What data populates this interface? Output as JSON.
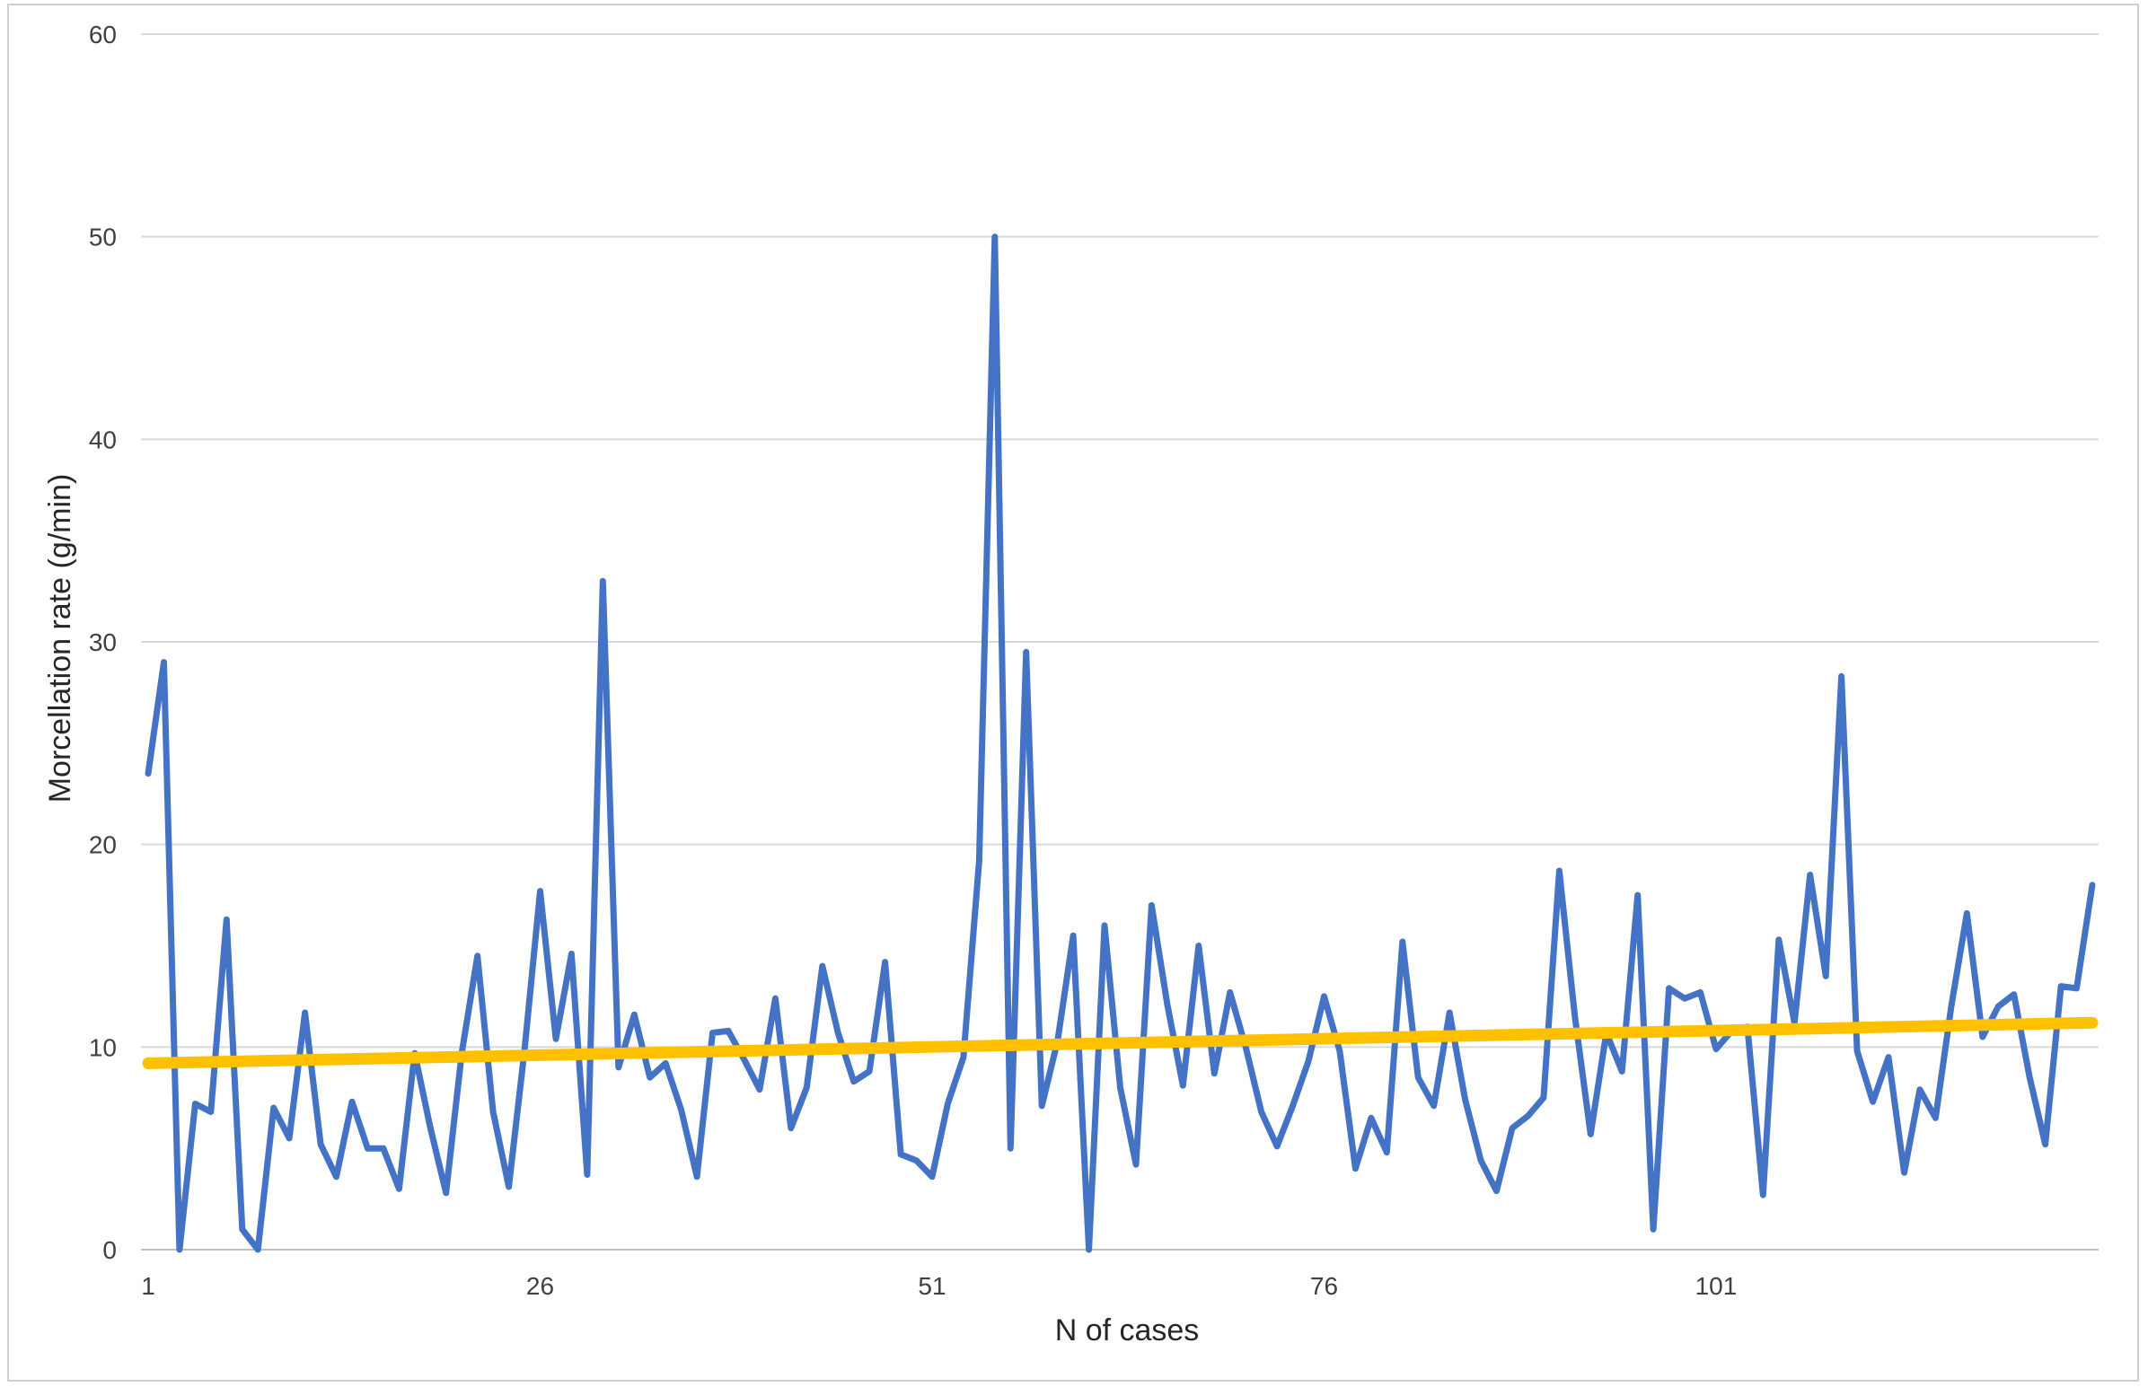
{
  "chart_data": {
    "type": "line",
    "title": "",
    "xlabel": "N of cases",
    "ylabel": "Morcellation rate (g/min)",
    "ylim": [
      0,
      60
    ],
    "y_ticks": [
      "0",
      "10",
      "20",
      "30",
      "40",
      "50",
      "60"
    ],
    "x_ticks": [
      "1",
      "26",
      "51",
      "76",
      "101"
    ],
    "x_tick_values": [
      1,
      26,
      51,
      76,
      101
    ],
    "xlim": [
      1,
      125
    ],
    "grid": true,
    "legend": "none",
    "colors": {
      "series": "#4472C4",
      "trend": "#FFC000",
      "grid": "#d9d9d9",
      "axis": "#bfbfbf"
    },
    "series": [
      {
        "type": "line",
        "x": [
          1,
          2,
          3,
          4,
          5,
          6,
          7,
          8,
          9,
          10,
          11,
          12,
          13,
          14,
          15,
          16,
          17,
          18,
          19,
          20,
          21,
          22,
          23,
          24,
          25,
          26,
          27,
          28,
          29,
          30,
          31,
          32,
          33,
          34,
          35,
          36,
          37,
          38,
          39,
          40,
          41,
          42,
          43,
          44,
          45,
          46,
          47,
          48,
          49,
          50,
          51,
          52,
          53,
          54,
          55,
          56,
          57,
          58,
          59,
          60,
          61,
          62,
          63,
          64,
          65,
          66,
          67,
          68,
          69,
          70,
          71,
          72,
          73,
          74,
          75,
          76,
          77,
          78,
          79,
          80,
          81,
          82,
          83,
          84,
          85,
          86,
          87,
          88,
          89,
          90,
          91,
          92,
          93,
          94,
          95,
          96,
          97,
          98,
          99,
          100,
          101,
          102,
          103,
          104,
          105,
          106,
          107,
          108,
          109,
          110,
          111,
          112,
          113,
          114,
          115,
          116,
          117,
          118,
          119,
          120,
          121,
          122,
          123,
          124,
          125
        ],
        "values": [
          23.5,
          29,
          0,
          7.2,
          6.8,
          16.3,
          1,
          0,
          7,
          5.5,
          11.7,
          5.2,
          3.6,
          7.3,
          5,
          5,
          3,
          9.7,
          6,
          2.8,
          9.7,
          14.5,
          6.8,
          3.1,
          9.8,
          17.7,
          10.4,
          14.6,
          3.7,
          33,
          9,
          11.6,
          8.5,
          9.2,
          6.9,
          3.6,
          10.7,
          10.8,
          9.4,
          7.9,
          12.4,
          6,
          8,
          14,
          10.7,
          8.3,
          8.8,
          14.2,
          4.7,
          4.4,
          3.6,
          7.2,
          9.5,
          19.2,
          50,
          5,
          29.5,
          7.1,
          10.3,
          15.5,
          0,
          16,
          8,
          4.2,
          17,
          12.1,
          8.1,
          15,
          8.7,
          12.7,
          10,
          6.8,
          5.1,
          7.1,
          9.3,
          12.5,
          9.8,
          4,
          6.5,
          4.8,
          15.2,
          8.5,
          7.1,
          11.7,
          7.4,
          4.4,
          2.9,
          6,
          6.6,
          7.5,
          18.7,
          11.5,
          5.7,
          10.7,
          8.8,
          17.5,
          1,
          12.9,
          12.4,
          12.7,
          9.9,
          10.8,
          11,
          2.7,
          15.3,
          11.2,
          18.5,
          13.5,
          28.3,
          9.8,
          7.3,
          9.5,
          3.8,
          7.9,
          6.5,
          12,
          16.6,
          10.5,
          12,
          12.6,
          8.5,
          5.2,
          13,
          12.9,
          18
        ]
      },
      {
        "type": "linear-trend",
        "x": [
          1,
          125
        ],
        "values": [
          9.2,
          11.2
        ]
      }
    ]
  }
}
